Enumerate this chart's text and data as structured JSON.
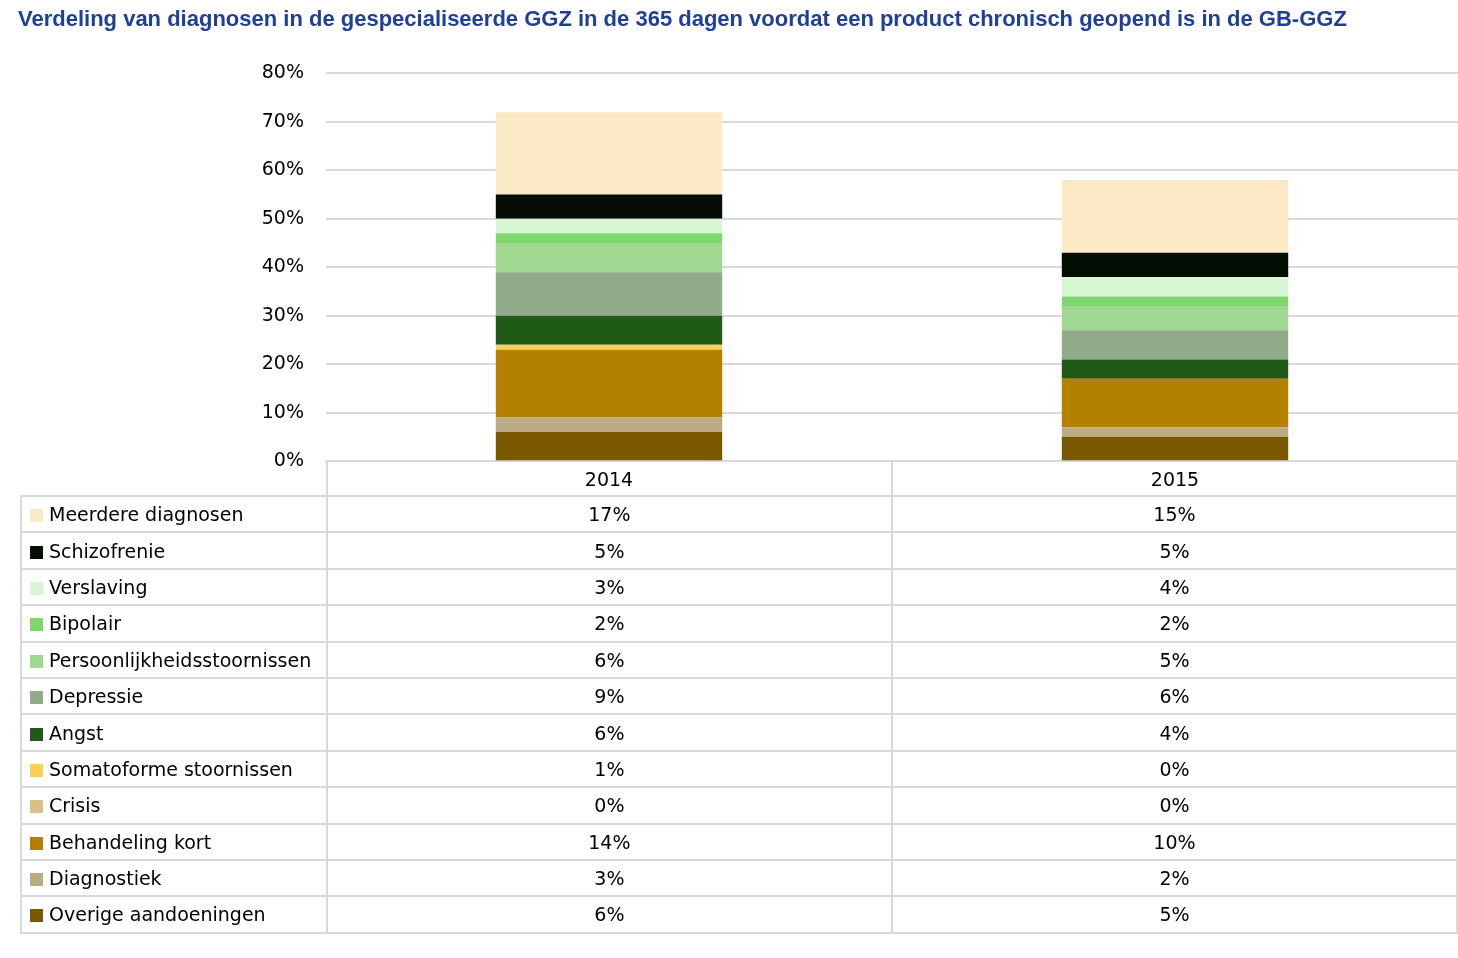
{
  "chart_data": {
    "type": "bar",
    "title": "Verdeling van diagnosen in de gespecialiseerde GGZ in de 365 dagen voordat een product chronisch geopend is in de GB-GGZ",
    "categories": [
      "2014",
      "2015"
    ],
    "stacked": true,
    "ylim": [
      0,
      80
    ],
    "yticks": [
      {
        "value": 0,
        "label": "0%"
      },
      {
        "value": 10,
        "label": "10%"
      },
      {
        "value": 20,
        "label": "20%"
      },
      {
        "value": 30,
        "label": "30%"
      },
      {
        "value": 40,
        "label": "40%"
      },
      {
        "value": 50,
        "label": "50%"
      },
      {
        "value": 60,
        "label": "60%"
      },
      {
        "value": 70,
        "label": "70%"
      },
      {
        "value": 80,
        "label": "80%"
      }
    ],
    "grid": "y",
    "legend": "bottom",
    "series": [
      {
        "name": "Overige aandoeningen",
        "color": "#7a5800",
        "values": [
          6,
          5
        ],
        "value_labels": [
          "6%",
          "5%"
        ]
      },
      {
        "name": "Diagnostiek",
        "color": "#bcaa84",
        "values": [
          3,
          2
        ],
        "value_labels": [
          "3%",
          "2%"
        ]
      },
      {
        "name": "Behandeling kort",
        "color": "#b38000",
        "values": [
          14,
          10
        ],
        "value_labels": [
          "14%",
          "10%"
        ]
      },
      {
        "name": "Crisis",
        "color": "#d8c08a",
        "values": [
          0,
          0
        ],
        "value_labels": [
          "0%",
          "0%"
        ]
      },
      {
        "name": "Somatoforme stoornissen",
        "color": "#f7d055",
        "values": [
          1,
          0
        ],
        "value_labels": [
          "1%",
          "0%"
        ]
      },
      {
        "name": "Angst",
        "color": "#1f5a17",
        "values": [
          6,
          4
        ],
        "value_labels": [
          "6%",
          "4%"
        ]
      },
      {
        "name": "Depressie",
        "color": "#91ab8a",
        "values": [
          9,
          6
        ],
        "value_labels": [
          "9%",
          "6%"
        ]
      },
      {
        "name": "Persoonlijkheidsstoornissen",
        "color": "#a0d891",
        "values": [
          6,
          5
        ],
        "value_labels": [
          "6%",
          "5%"
        ]
      },
      {
        "name": "Bipolair",
        "color": "#7ed86e",
        "values": [
          2,
          2
        ],
        "value_labels": [
          "2%",
          "2%"
        ]
      },
      {
        "name": "Verslaving",
        "color": "#d8f5d4",
        "values": [
          3,
          4
        ],
        "value_labels": [
          "3%",
          "4%"
        ]
      },
      {
        "name": "Schizofrenie",
        "color": "#050e04",
        "values": [
          5,
          5
        ],
        "value_labels": [
          "5%",
          "5%"
        ]
      },
      {
        "name": "Meerdere diagnosen",
        "color": "#fae9c4",
        "values": [
          17,
          15
        ],
        "value_labels": [
          "17%",
          "15%"
        ]
      }
    ]
  }
}
